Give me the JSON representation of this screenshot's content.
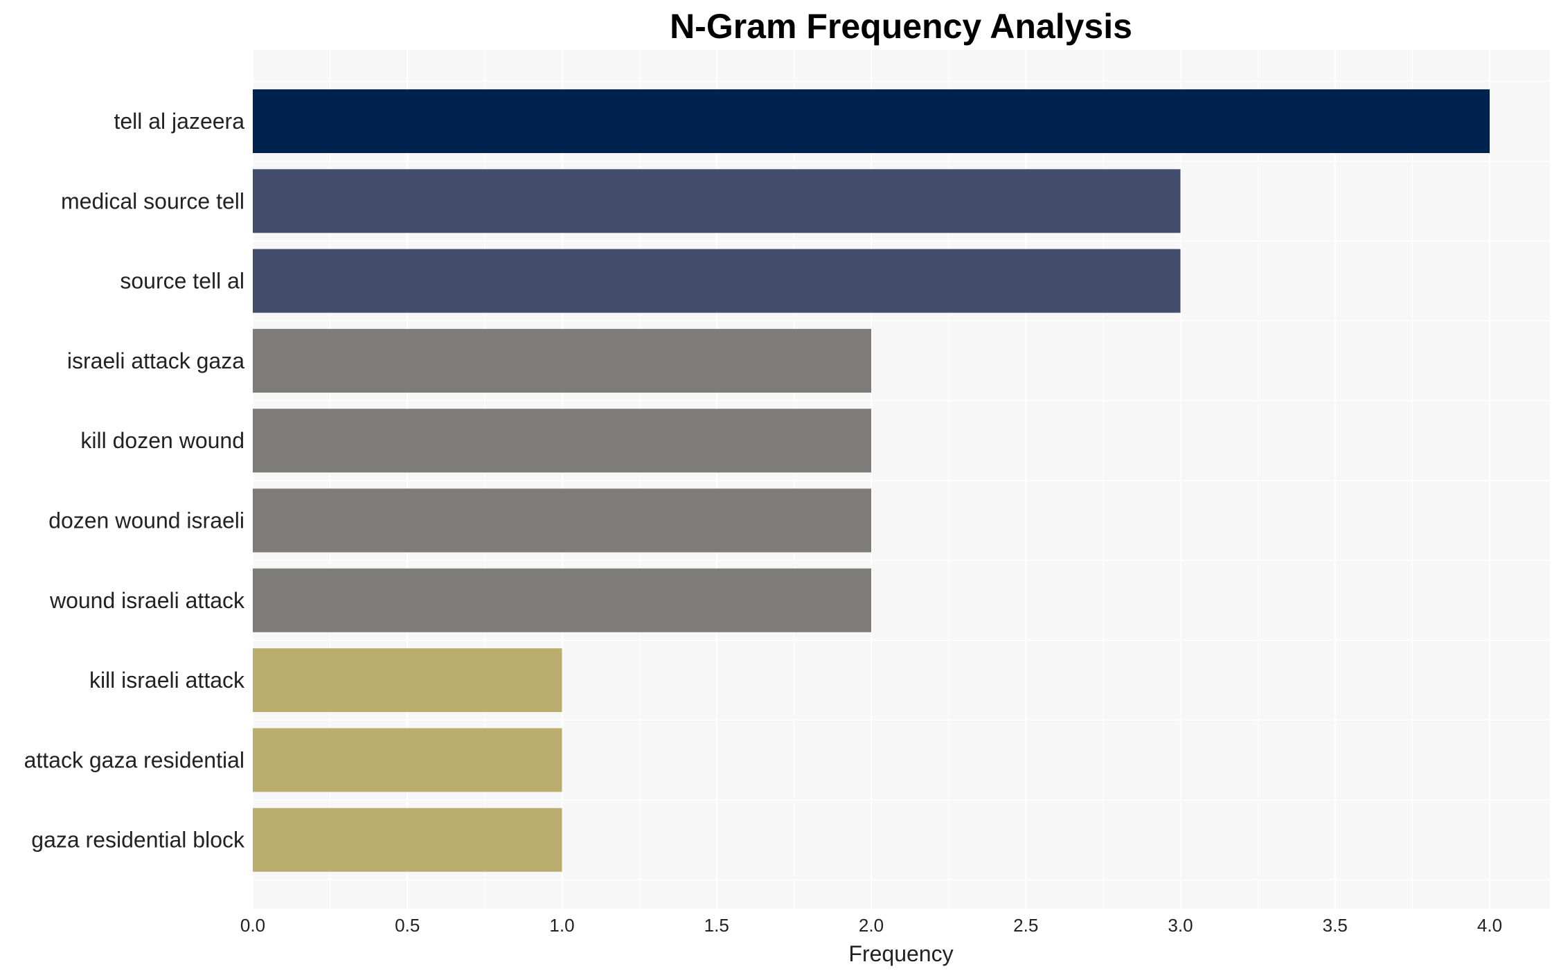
{
  "chart_data": {
    "type": "bar",
    "orientation": "horizontal",
    "title": "N-Gram Frequency Analysis",
    "xlabel": "Frequency",
    "ylabel": "",
    "xlim": [
      0,
      4.2
    ],
    "xticks": [
      "0.0",
      "0.5",
      "1.0",
      "1.5",
      "2.0",
      "2.5",
      "3.0",
      "3.5",
      "4.0"
    ],
    "grid": true,
    "categories": [
      "tell al jazeera",
      "medical source tell",
      "source tell al",
      "israeli attack gaza",
      "kill dozen wound",
      "dozen wound israeli",
      "wound israeli attack",
      "kill israeli attack",
      "attack gaza residential",
      "gaza residential block"
    ],
    "values": [
      4,
      3,
      3,
      2,
      2,
      2,
      2,
      1,
      1,
      1
    ],
    "colors": [
      "#00224e",
      "#434e6c",
      "#434e6c",
      "#7d7c78",
      "#7d7c78",
      "#7d7c78",
      "#7d7c78",
      "#bbad6e",
      "#bbad6e",
      "#bbad6e"
    ],
    "plot_background": "#f7f7f7"
  }
}
